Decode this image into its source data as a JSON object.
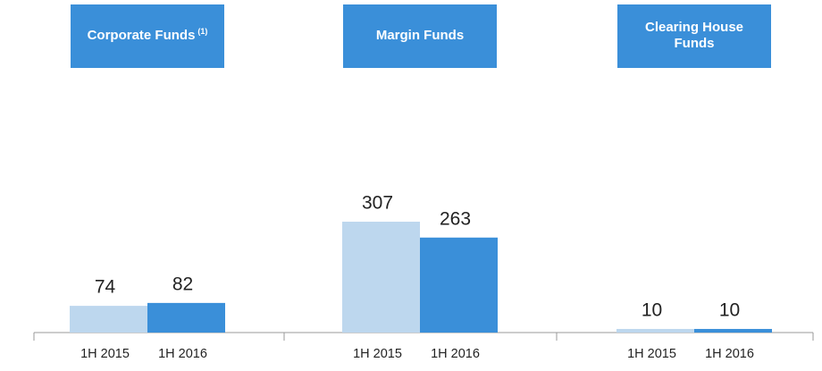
{
  "chart_data": {
    "type": "bar",
    "categories": [
      "Corporate Funds",
      "Margin Funds",
      "Clearing House Funds"
    ],
    "category_notes": [
      "(1)",
      null,
      null
    ],
    "series": [
      {
        "name": "1H 2015",
        "color": "#bdd7ee",
        "values": [
          74,
          307,
          10
        ]
      },
      {
        "name": "1H 2016",
        "color": "#3a8fd9",
        "values": [
          82,
          263,
          10
        ]
      }
    ],
    "header_color": "#3a8fd9"
  }
}
